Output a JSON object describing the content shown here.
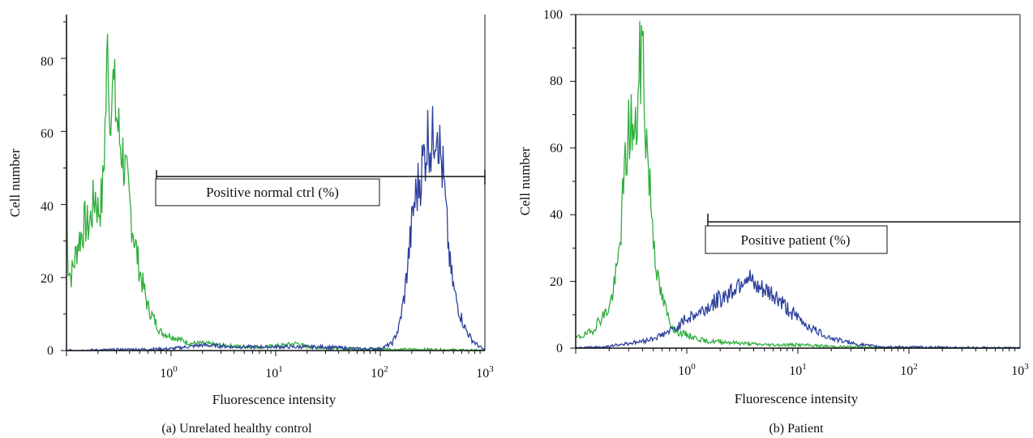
{
  "chart_data": [
    {
      "type": "line",
      "caption": "(a)  Unrelated healthy control",
      "xlabel": "Fluorescence intensity",
      "ylabel": "Cell number",
      "x_scale": "log",
      "xlim": [
        0.1,
        1000
      ],
      "ylim": [
        0,
        92
      ],
      "x_ticks": [
        {
          "value": 1,
          "base": "10",
          "exp": "0"
        },
        {
          "value": 10,
          "base": "10",
          "exp": "1"
        },
        {
          "value": 100,
          "base": "10",
          "exp": "2"
        },
        {
          "value": 1000,
          "base": "10",
          "exp": "3"
        }
      ],
      "y_ticks": [
        "0",
        "20",
        "40",
        "60",
        "80"
      ],
      "grid": false,
      "gate": {
        "label": "Positive normal ctrl (%)",
        "x_start": 0.75,
        "x_end": 1000,
        "y": 48
      },
      "series": [
        {
          "color": "#2fae3c",
          "points": [
            [
              0.1,
              90
            ],
            [
              0.102,
              25
            ],
            [
              0.11,
              20
            ],
            [
              0.12,
              25
            ],
            [
              0.13,
              30
            ],
            [
              0.14,
              32
            ],
            [
              0.15,
              35
            ],
            [
              0.16,
              34
            ],
            [
              0.17,
              36
            ],
            [
              0.18,
              40
            ],
            [
              0.19,
              43
            ],
            [
              0.2,
              38
            ],
            [
              0.21,
              40
            ],
            [
              0.22,
              42
            ],
            [
              0.23,
              55
            ],
            [
              0.24,
              70
            ],
            [
              0.25,
              88
            ],
            [
              0.26,
              60
            ],
            [
              0.27,
              78
            ],
            [
              0.28,
              72
            ],
            [
              0.3,
              65
            ],
            [
              0.32,
              58
            ],
            [
              0.34,
              55
            ],
            [
              0.36,
              50
            ],
            [
              0.4,
              40
            ],
            [
              0.45,
              30
            ],
            [
              0.5,
              22
            ],
            [
              0.6,
              12
            ],
            [
              0.7,
              8
            ],
            [
              0.8,
              5
            ],
            [
              1,
              4
            ],
            [
              1.5,
              2
            ],
            [
              2,
              2
            ],
            [
              3,
              1.5
            ],
            [
              5,
              1
            ],
            [
              8,
              1
            ],
            [
              12,
              1.5
            ],
            [
              16,
              2
            ],
            [
              20,
              1
            ],
            [
              40,
              0.5
            ],
            [
              80,
              0.5
            ],
            [
              150,
              0.3
            ],
            [
              300,
              0.3
            ],
            [
              1000,
              0
            ]
          ]
        },
        {
          "color": "#2b3f9c",
          "points": [
            [
              0.1,
              0
            ],
            [
              1,
              0.5
            ],
            [
              2,
              1.5
            ],
            [
              4,
              1
            ],
            [
              8,
              1
            ],
            [
              15,
              1
            ],
            [
              30,
              1
            ],
            [
              60,
              0.5
            ],
            [
              100,
              0.5
            ],
            [
              130,
              2
            ],
            [
              150,
              6
            ],
            [
              170,
              15
            ],
            [
              190,
              28
            ],
            [
              210,
              40
            ],
            [
              230,
              45
            ],
            [
              250,
              50
            ],
            [
              270,
              55
            ],
            [
              290,
              60
            ],
            [
              310,
              55
            ],
            [
              330,
              62
            ],
            [
              350,
              65
            ],
            [
              370,
              55
            ],
            [
              400,
              48
            ],
            [
              430,
              35
            ],
            [
              470,
              22
            ],
            [
              520,
              15
            ],
            [
              580,
              10
            ],
            [
              650,
              6
            ],
            [
              750,
              3
            ],
            [
              850,
              1.5
            ],
            [
              1000,
              0
            ]
          ]
        }
      ]
    },
    {
      "type": "line",
      "caption": "(b)  Patient",
      "xlabel": "Fluorescence intensity",
      "ylabel": "Cell number",
      "x_scale": "log",
      "xlim": [
        0.1,
        1000
      ],
      "ylim": [
        0,
        100
      ],
      "x_ticks": [
        {
          "value": 1,
          "base": "10",
          "exp": "0"
        },
        {
          "value": 10,
          "base": "10",
          "exp": "1"
        },
        {
          "value": 100,
          "base": "10",
          "exp": "2"
        },
        {
          "value": 1000,
          "base": "10",
          "exp": "3"
        }
      ],
      "y_ticks": [
        "0",
        "20",
        "40",
        "60",
        "80",
        "100"
      ],
      "grid": false,
      "gate": {
        "label": "Positive patient (%)",
        "x_start": 1.6,
        "x_end": 1000,
        "y": 38
      },
      "series": [
        {
          "color": "#2fae3c",
          "points": [
            [
              0.1,
              3
            ],
            [
              0.12,
              4
            ],
            [
              0.14,
              5
            ],
            [
              0.16,
              8
            ],
            [
              0.18,
              10
            ],
            [
              0.2,
              12
            ],
            [
              0.22,
              18
            ],
            [
              0.24,
              25
            ],
            [
              0.26,
              40
            ],
            [
              0.28,
              55
            ],
            [
              0.3,
              65
            ],
            [
              0.32,
              68
            ],
            [
              0.34,
              60
            ],
            [
              0.36,
              72
            ],
            [
              0.38,
              85
            ],
            [
              0.4,
              93
            ],
            [
              0.42,
              70
            ],
            [
              0.45,
              55
            ],
            [
              0.5,
              35
            ],
            [
              0.55,
              20
            ],
            [
              0.6,
              15
            ],
            [
              0.7,
              8
            ],
            [
              0.8,
              5
            ],
            [
              1,
              4
            ],
            [
              1.5,
              2
            ],
            [
              2,
              2
            ],
            [
              3,
              1.5
            ],
            [
              5,
              1
            ],
            [
              10,
              1
            ],
            [
              20,
              0.5
            ],
            [
              40,
              0.3
            ],
            [
              100,
              0
            ],
            [
              1000,
              0
            ]
          ]
        },
        {
          "color": "#2b3f9c",
          "points": [
            [
              0.1,
              0
            ],
            [
              0.2,
              0.5
            ],
            [
              0.3,
              1.5
            ],
            [
              0.4,
              2
            ],
            [
              0.5,
              3
            ],
            [
              0.6,
              4
            ],
            [
              0.8,
              6
            ],
            [
              1,
              9
            ],
            [
              1.2,
              10
            ],
            [
              1.5,
              12
            ],
            [
              2,
              15
            ],
            [
              2.5,
              17
            ],
            [
              3,
              20
            ],
            [
              3.5,
              22
            ],
            [
              4,
              18
            ],
            [
              5,
              17
            ],
            [
              6,
              16
            ],
            [
              7,
              14
            ],
            [
              8,
              12
            ],
            [
              10,
              9
            ],
            [
              12,
              7
            ],
            [
              15,
              5
            ],
            [
              20,
              3
            ],
            [
              30,
              1.5
            ],
            [
              50,
              0.5
            ],
            [
              100,
              0.3
            ],
            [
              1000,
              0
            ]
          ]
        }
      ]
    }
  ]
}
